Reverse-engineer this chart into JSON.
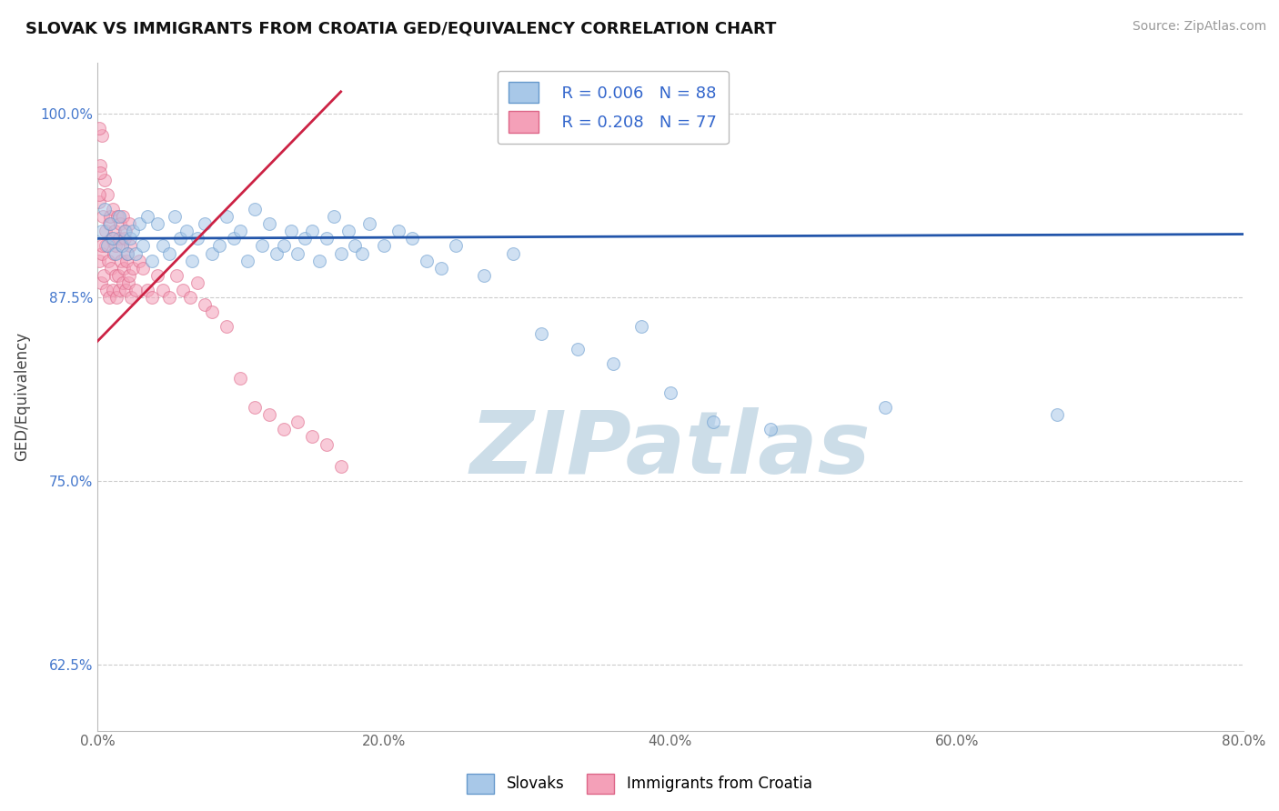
{
  "title": "SLOVAK VS IMMIGRANTS FROM CROATIA GED/EQUIVALENCY CORRELATION CHART",
  "source_text": "Source: ZipAtlas.com",
  "ylabel": "GED/Equivalency",
  "xlim": [
    0.0,
    80.0
  ],
  "ylim": [
    58.0,
    103.5
  ],
  "xticks": [
    0.0,
    20.0,
    40.0,
    60.0,
    80.0
  ],
  "xtick_labels": [
    "0.0%",
    "20.0%",
    "40.0%",
    "60.0%",
    "80.0%"
  ],
  "yticks": [
    62.5,
    75.0,
    87.5,
    100.0
  ],
  "ytick_labels": [
    "62.5%",
    "75.0%",
    "87.5%",
    "100.0%"
  ],
  "blue_color": "#a8c8e8",
  "pink_color": "#f4a0b8",
  "blue_edge": "#6699cc",
  "pink_edge": "#dd6688",
  "trend_blue": "#2255aa",
  "trend_pink": "#cc2244",
  "watermark": "ZIPatlas",
  "watermark_color": "#ccdde8",
  "legend_R_blue": "R = 0.006",
  "legend_N_blue": "N = 88",
  "legend_R_pink": "R = 0.208",
  "legend_N_pink": "N = 77",
  "legend_label_blue": "Slovaks",
  "legend_label_pink": "Immigrants from Croatia",
  "blue_x": [
    0.3,
    0.5,
    0.7,
    0.9,
    1.1,
    1.3,
    1.5,
    1.7,
    1.9,
    2.1,
    2.3,
    2.5,
    2.7,
    2.9,
    3.2,
    3.5,
    3.8,
    4.2,
    4.6,
    5.0,
    5.4,
    5.8,
    6.2,
    6.6,
    7.0,
    7.5,
    8.0,
    8.5,
    9.0,
    9.5,
    10.0,
    10.5,
    11.0,
    11.5,
    12.0,
    12.5,
    13.0,
    13.5,
    14.0,
    14.5,
    15.0,
    15.5,
    16.0,
    16.5,
    17.0,
    17.5,
    18.0,
    18.5,
    19.0,
    20.0,
    21.0,
    22.0,
    23.0,
    24.0,
    25.0,
    27.0,
    29.0,
    31.0,
    33.5,
    36.0,
    38.0,
    40.0,
    43.0,
    47.0,
    55.0,
    67.0
  ],
  "blue_y": [
    92.0,
    93.5,
    91.0,
    92.5,
    91.5,
    90.5,
    93.0,
    91.0,
    92.0,
    90.5,
    91.5,
    92.0,
    90.5,
    92.5,
    91.0,
    93.0,
    90.0,
    92.5,
    91.0,
    90.5,
    93.0,
    91.5,
    92.0,
    90.0,
    91.5,
    92.5,
    90.5,
    91.0,
    93.0,
    91.5,
    92.0,
    90.0,
    93.5,
    91.0,
    92.5,
    90.5,
    91.0,
    92.0,
    90.5,
    91.5,
    92.0,
    90.0,
    91.5,
    93.0,
    90.5,
    92.0,
    91.0,
    90.5,
    92.5,
    91.0,
    92.0,
    91.5,
    90.0,
    89.5,
    91.0,
    89.0,
    90.5,
    85.0,
    84.0,
    83.0,
    85.5,
    81.0,
    79.0,
    78.5,
    80.0,
    79.5
  ],
  "pink_x": [
    0.15,
    0.25,
    0.35,
    0.45,
    0.55,
    0.65,
    0.75,
    0.85,
    0.95,
    1.05,
    1.15,
    1.25,
    1.35,
    1.45,
    1.55,
    1.65,
    1.75,
    1.85,
    1.95,
    2.05,
    2.15,
    2.25,
    2.35,
    2.5,
    2.7,
    2.9,
    3.2,
    3.5,
    3.8,
    4.2,
    4.6,
    5.0,
    5.5,
    6.0,
    6.5,
    7.0,
    7.5,
    8.0,
    9.0,
    10.0,
    11.0,
    12.0,
    13.0,
    14.0,
    15.0,
    16.0,
    17.0,
    0.1,
    0.2,
    0.3,
    0.4,
    0.5,
    0.6,
    0.7,
    0.8,
    0.9,
    1.0,
    1.1,
    1.2,
    1.3,
    1.4,
    1.5,
    1.6,
    1.7,
    1.8,
    1.9,
    2.0,
    2.1,
    2.2,
    2.3,
    0.3,
    0.2,
    0.15,
    0.1
  ],
  "pink_y": [
    90.0,
    88.5,
    90.5,
    89.0,
    91.0,
    88.0,
    90.0,
    87.5,
    89.5,
    88.0,
    90.5,
    89.0,
    87.5,
    89.0,
    88.0,
    90.0,
    88.5,
    89.5,
    88.0,
    90.0,
    88.5,
    89.0,
    87.5,
    89.5,
    88.0,
    90.0,
    89.5,
    88.0,
    87.5,
    89.0,
    88.0,
    87.5,
    89.0,
    88.0,
    87.5,
    88.5,
    87.0,
    86.5,
    85.5,
    82.0,
    80.0,
    79.5,
    78.5,
    79.0,
    78.0,
    77.5,
    76.0,
    94.0,
    96.5,
    91.0,
    93.0,
    95.5,
    92.0,
    94.5,
    92.5,
    93.0,
    91.5,
    93.5,
    92.0,
    91.0,
    93.0,
    91.5,
    92.5,
    91.0,
    93.0,
    91.5,
    92.0,
    90.5,
    92.5,
    91.0,
    98.5,
    96.0,
    94.5,
    99.0
  ],
  "dot_size_blue": 100,
  "dot_size_pink": 100,
  "dot_alpha": 0.55,
  "blue_trend_x0": 0.0,
  "blue_trend_y0": 91.5,
  "blue_trend_x1": 80.0,
  "blue_trend_y1": 91.8,
  "pink_trend_x0": 0.0,
  "pink_trend_y0": 84.5,
  "pink_trend_x1": 17.0,
  "pink_trend_y1": 101.5
}
